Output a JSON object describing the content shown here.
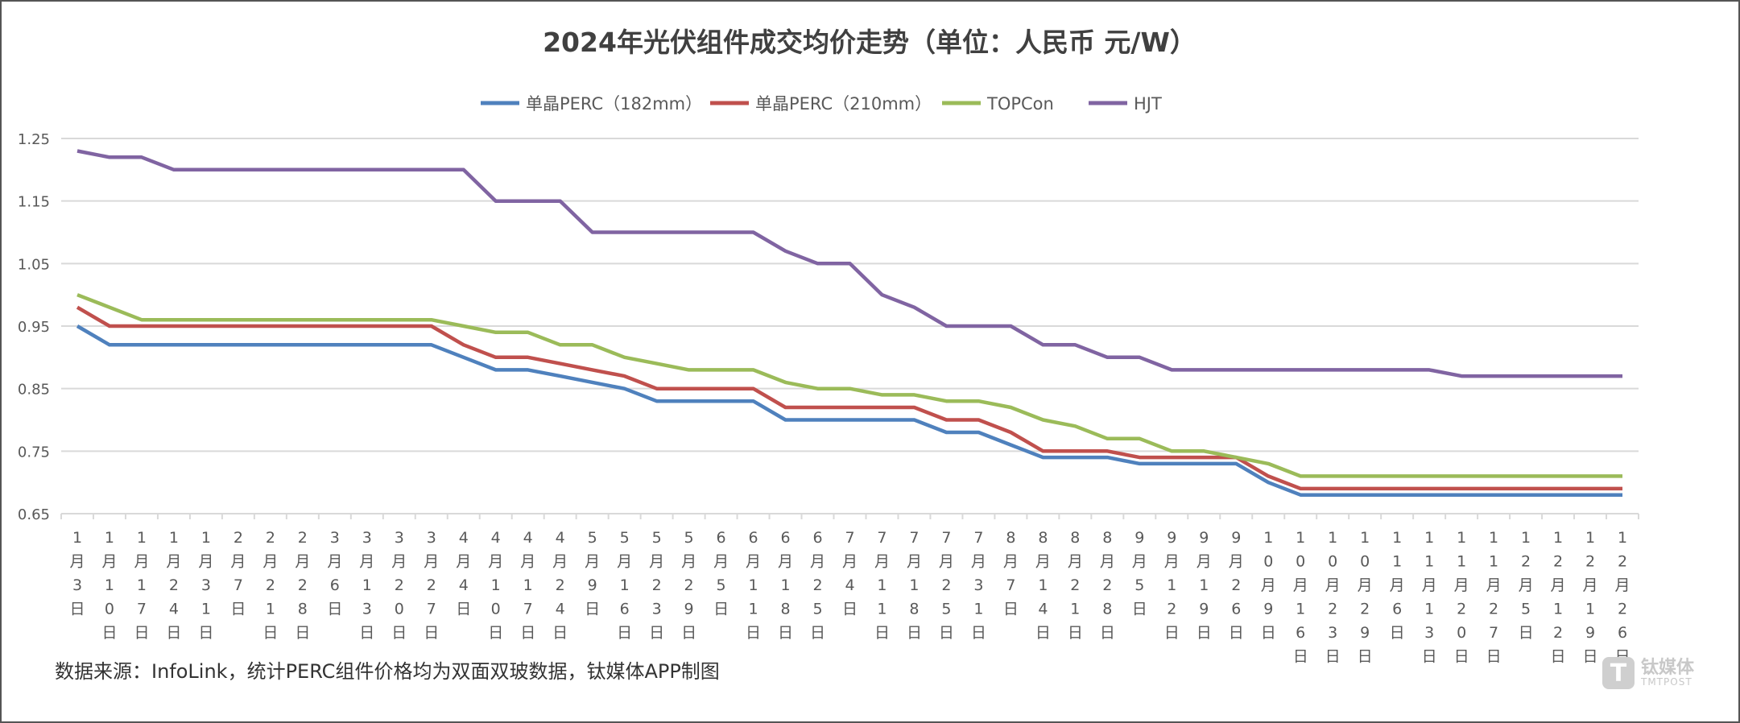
{
  "chart_data": {
    "type": "line",
    "title": "2024年光伏组件成交均价走势（单位：人民币 元/W）",
    "xlabel": "",
    "ylabel": "",
    "ylim": [
      0.65,
      1.25
    ],
    "yticks": [
      "1.25",
      "1.15",
      "1.05",
      "0.95",
      "0.85",
      "0.75",
      "0.65"
    ],
    "grid": true,
    "legend_position": "top",
    "categories": [
      "1月3日",
      "1月10日",
      "1月17日",
      "1月24日",
      "1月31日",
      "2月7日",
      "2月21日",
      "2月28日",
      "3月6日",
      "3月13日",
      "3月20日",
      "3月27日",
      "4月4日",
      "4月10日",
      "4月17日",
      "4月24日",
      "5月9日",
      "5月16日",
      "5月23日",
      "5月29日",
      "6月5日",
      "6月11日",
      "6月18日",
      "6月25日",
      "7月4日",
      "7月11日",
      "7月18日",
      "7月25日",
      "7月31日",
      "8月7日",
      "8月14日",
      "8月21日",
      "8月28日",
      "9月5日",
      "9月12日",
      "9月19日",
      "9月26日",
      "10月9日",
      "10月16日",
      "10月23日",
      "10月29日",
      "11月6日",
      "11月13日",
      "11月20日",
      "11月27日",
      "12月5日",
      "12月12日",
      "12月19日",
      "12月26日"
    ],
    "series": [
      {
        "name": "单晶PERC（182mm）",
        "color": "#4f81bd",
        "values": [
          0.95,
          0.92,
          0.92,
          0.92,
          0.92,
          0.92,
          0.92,
          0.92,
          0.92,
          0.92,
          0.92,
          0.92,
          0.9,
          0.88,
          0.88,
          0.87,
          0.86,
          0.85,
          0.83,
          0.83,
          0.83,
          0.83,
          0.8,
          0.8,
          0.8,
          0.8,
          0.8,
          0.78,
          0.78,
          0.76,
          0.74,
          0.74,
          0.74,
          0.73,
          0.73,
          0.73,
          0.73,
          0.7,
          0.68,
          0.68,
          0.68,
          0.68,
          0.68,
          0.68,
          0.68,
          0.68,
          0.68,
          0.68,
          0.68
        ]
      },
      {
        "name": "单晶PERC（210mm）",
        "color": "#c0504d",
        "values": [
          0.98,
          0.95,
          0.95,
          0.95,
          0.95,
          0.95,
          0.95,
          0.95,
          0.95,
          0.95,
          0.95,
          0.95,
          0.92,
          0.9,
          0.9,
          0.89,
          0.88,
          0.87,
          0.85,
          0.85,
          0.85,
          0.85,
          0.82,
          0.82,
          0.82,
          0.82,
          0.82,
          0.8,
          0.8,
          0.78,
          0.75,
          0.75,
          0.75,
          0.74,
          0.74,
          0.74,
          0.74,
          0.71,
          0.69,
          0.69,
          0.69,
          0.69,
          0.69,
          0.69,
          0.69,
          0.69,
          0.69,
          0.69,
          0.69
        ]
      },
      {
        "name": "TOPCon",
        "color": "#9bbb59",
        "values": [
          1.0,
          0.98,
          0.96,
          0.96,
          0.96,
          0.96,
          0.96,
          0.96,
          0.96,
          0.96,
          0.96,
          0.96,
          0.95,
          0.94,
          0.94,
          0.92,
          0.92,
          0.9,
          0.89,
          0.88,
          0.88,
          0.88,
          0.86,
          0.85,
          0.85,
          0.84,
          0.84,
          0.83,
          0.83,
          0.82,
          0.8,
          0.79,
          0.77,
          0.77,
          0.75,
          0.75,
          0.74,
          0.73,
          0.71,
          0.71,
          0.71,
          0.71,
          0.71,
          0.71,
          0.71,
          0.71,
          0.71,
          0.71,
          0.71
        ]
      },
      {
        "name": "HJT",
        "color": "#8064a2",
        "values": [
          1.23,
          1.22,
          1.22,
          1.2,
          1.2,
          1.2,
          1.2,
          1.2,
          1.2,
          1.2,
          1.2,
          1.2,
          1.2,
          1.15,
          1.15,
          1.15,
          1.1,
          1.1,
          1.1,
          1.1,
          1.1,
          1.1,
          1.07,
          1.05,
          1.05,
          1.0,
          0.98,
          0.95,
          0.95,
          0.95,
          0.92,
          0.92,
          0.9,
          0.9,
          0.88,
          0.88,
          0.88,
          0.88,
          0.88,
          0.88,
          0.88,
          0.88,
          0.88,
          0.87,
          0.87,
          0.87,
          0.87,
          0.87,
          0.87
        ]
      }
    ]
  },
  "footer": {
    "source": "数据来源：InfoLink，统计PERC组件价格均为双面双玻数据，钛媒体APP制图"
  },
  "watermark": {
    "cn": "钛媒体",
    "en": "TMTPOST"
  }
}
